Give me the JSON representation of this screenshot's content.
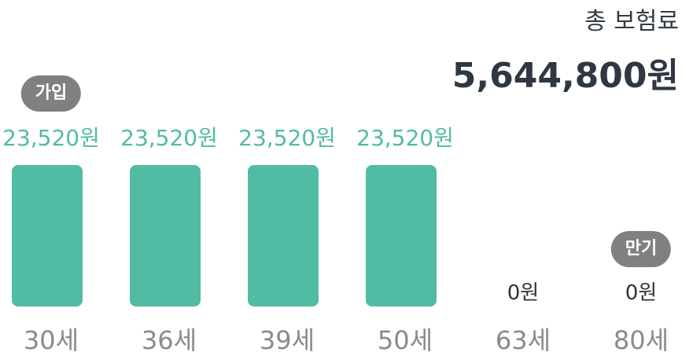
{
  "total": {
    "label": "총 보험료",
    "value": "5,644,800원"
  },
  "colors": {
    "bar": "#52bba4",
    "value_text": "#52bba4",
    "zero_text": "#333333",
    "badge_bg": "#808080"
  },
  "chart_data": {
    "type": "bar",
    "categories": [
      "30세",
      "36세",
      "39세",
      "50세",
      "63세",
      "80세"
    ],
    "values": [
      23520,
      23520,
      23520,
      23520,
      0,
      0
    ],
    "value_labels": [
      "23,520원",
      "23,520원",
      "23,520원",
      "23,520원",
      "0원",
      "0원"
    ],
    "badges": [
      {
        "index": 0,
        "text": "가입"
      },
      {
        "index": 5,
        "text": "만기"
      }
    ],
    "ylim": [
      0,
      23520
    ]
  }
}
